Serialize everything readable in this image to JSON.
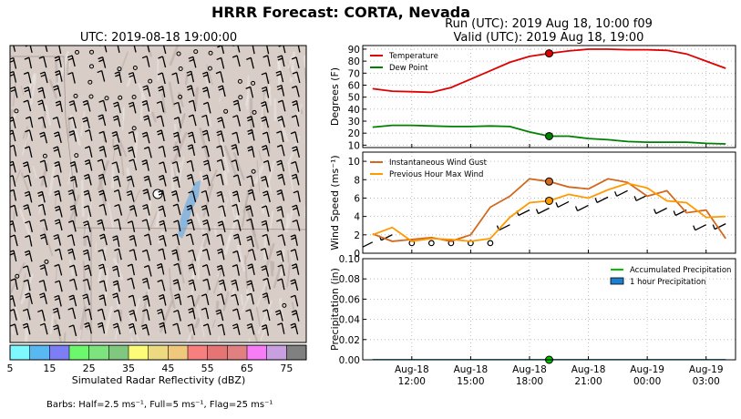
{
  "figure": {
    "title": "HRRR Forecast: CORTA, Nevada",
    "run_line": "Run (UTC): 2019 Aug 18, 10:00 f09",
    "valid_line": "Valid (UTC): 2019 Aug 18, 19:00",
    "barbs_note": "Barbs: Half=2.5 ms⁻¹, Full=5 ms⁻¹, Flag=25 ms⁻¹"
  },
  "map": {
    "title": "UTC: 2019-08-18 19:00:00",
    "colorbar_label": "Simulated Radar Reflectivity (dBZ)",
    "colorbar_colors": [
      "#7df9ff",
      "#59b8f2",
      "#7d7df6",
      "#6cf76c",
      "#7de37d",
      "#80c880",
      "#fcfc78",
      "#ecd980",
      "#f0c87d",
      "#f77f7f",
      "#e57575",
      "#e08080",
      "#f77df7",
      "#c8a0e0",
      "#808080"
    ],
    "colorbar_ticks": [
      "5",
      "15",
      "25",
      "35",
      "45",
      "55",
      "65",
      "75"
    ],
    "colors": {
      "terrain": "#d8cdc7",
      "lake": "#7fb3df"
    }
  },
  "chart_data": [
    {
      "type": "line",
      "panel": "temperature",
      "ylabel": "Degrees (F)",
      "ylim": [
        8,
        93
      ],
      "yticks": [
        10,
        20,
        30,
        40,
        50,
        60,
        70,
        80,
        90
      ],
      "x_hours": [
        10,
        11,
        12,
        13,
        14,
        15,
        16,
        17,
        18,
        19,
        20,
        21,
        22,
        23,
        0,
        1,
        2,
        3,
        4
      ],
      "legend_position": "upper-left",
      "series": [
        {
          "name": "Temperature",
          "color": "#e00000",
          "values": [
            57,
            55,
            54.5,
            54,
            58,
            65,
            72,
            79,
            84,
            86.5,
            88.5,
            90,
            90,
            89.5,
            89.5,
            89,
            86,
            80,
            74
          ]
        },
        {
          "name": "Dew Point",
          "color": "#008000",
          "values": [
            25,
            26.5,
            26.5,
            26,
            25.5,
            25.5,
            26,
            25.5,
            21,
            17.5,
            17.5,
            15.5,
            14.5,
            13,
            12.5,
            12.5,
            12.5,
            11.5,
            11
          ]
        }
      ],
      "current_markers": [
        {
          "series": "Temperature",
          "hour": 19,
          "value": 86.5
        },
        {
          "series": "Dew Point",
          "hour": 19,
          "value": 17.5
        }
      ]
    },
    {
      "type": "line",
      "panel": "wind",
      "ylabel": "Wind Speed (ms⁻¹)",
      "ylim": [
        0,
        11
      ],
      "yticks": [
        0,
        2,
        4,
        6,
        8,
        10
      ],
      "x_hours": [
        10,
        11,
        12,
        13,
        14,
        15,
        16,
        17,
        18,
        19,
        20,
        21,
        22,
        23,
        0,
        1,
        2,
        3,
        4
      ],
      "legend_position": "upper-left",
      "series": [
        {
          "name": "Instantaneous Wind Gust",
          "color": "#d2691e",
          "values": [
            2.1,
            1.3,
            1.5,
            1.7,
            1.3,
            2.0,
            5.0,
            6.2,
            8.1,
            7.8,
            7.2,
            7.0,
            8.1,
            7.7,
            6.2,
            6.8,
            4.4,
            4.7,
            1.6
          ]
        },
        {
          "name": "Previous Hour Max Wind",
          "color": "#ff9a00",
          "values": [
            2.0,
            2.8,
            1.3,
            1.6,
            1.5,
            1.3,
            1.6,
            3.9,
            5.5,
            5.7,
            6.4,
            6.0,
            6.9,
            7.6,
            7.1,
            5.7,
            5.5,
            3.9,
            4.0
          ]
        }
      ],
      "current_markers": [
        {
          "series": "Instantaneous Wind Gust",
          "hour": 19,
          "value": 7.8
        },
        {
          "series": "Previous Hour Max Wind",
          "hour": 19,
          "value": 5.7
        }
      ]
    },
    {
      "type": "line",
      "panel": "precipitation",
      "ylabel": "Precipitation (in)",
      "ylim": [
        0,
        0.1
      ],
      "yticks": [
        0.0,
        0.02,
        0.04,
        0.06,
        0.08,
        0.1
      ],
      "x_hours": [
        10,
        11,
        12,
        13,
        14,
        15,
        16,
        17,
        18,
        19,
        20,
        21,
        22,
        23,
        0,
        1,
        2,
        3,
        4
      ],
      "legend_position": "upper-right",
      "series": [
        {
          "name": "Accumulated Precipitation",
          "color": "#00c000",
          "values": [
            0,
            0,
            0,
            0,
            0,
            0,
            0,
            0,
            0,
            0,
            0,
            0,
            0,
            0,
            0,
            0,
            0,
            0,
            0
          ]
        },
        {
          "name": "1 hour Precipitation",
          "color": "#1e7fd0",
          "values": [
            0,
            0,
            0,
            0,
            0,
            0,
            0,
            0,
            0,
            0,
            0,
            0,
            0,
            0,
            0,
            0,
            0,
            0,
            0
          ]
        }
      ],
      "current_markers": [
        {
          "series": "Accumulated Precipitation",
          "hour": 19,
          "value": 0
        }
      ],
      "xtick_labels": [
        {
          "hour": 12,
          "line1": "Aug-18",
          "line2": "12:00"
        },
        {
          "hour": 15,
          "line1": "Aug-18",
          "line2": "15:00"
        },
        {
          "hour": 18,
          "line1": "Aug-18",
          "line2": "18:00"
        },
        {
          "hour": 21,
          "line1": "Aug-18",
          "line2": "21:00"
        },
        {
          "hour": 24,
          "line1": "Aug-19",
          "line2": "00:00"
        },
        {
          "hour": 27,
          "line1": "Aug-19",
          "line2": "03:00"
        }
      ]
    }
  ]
}
